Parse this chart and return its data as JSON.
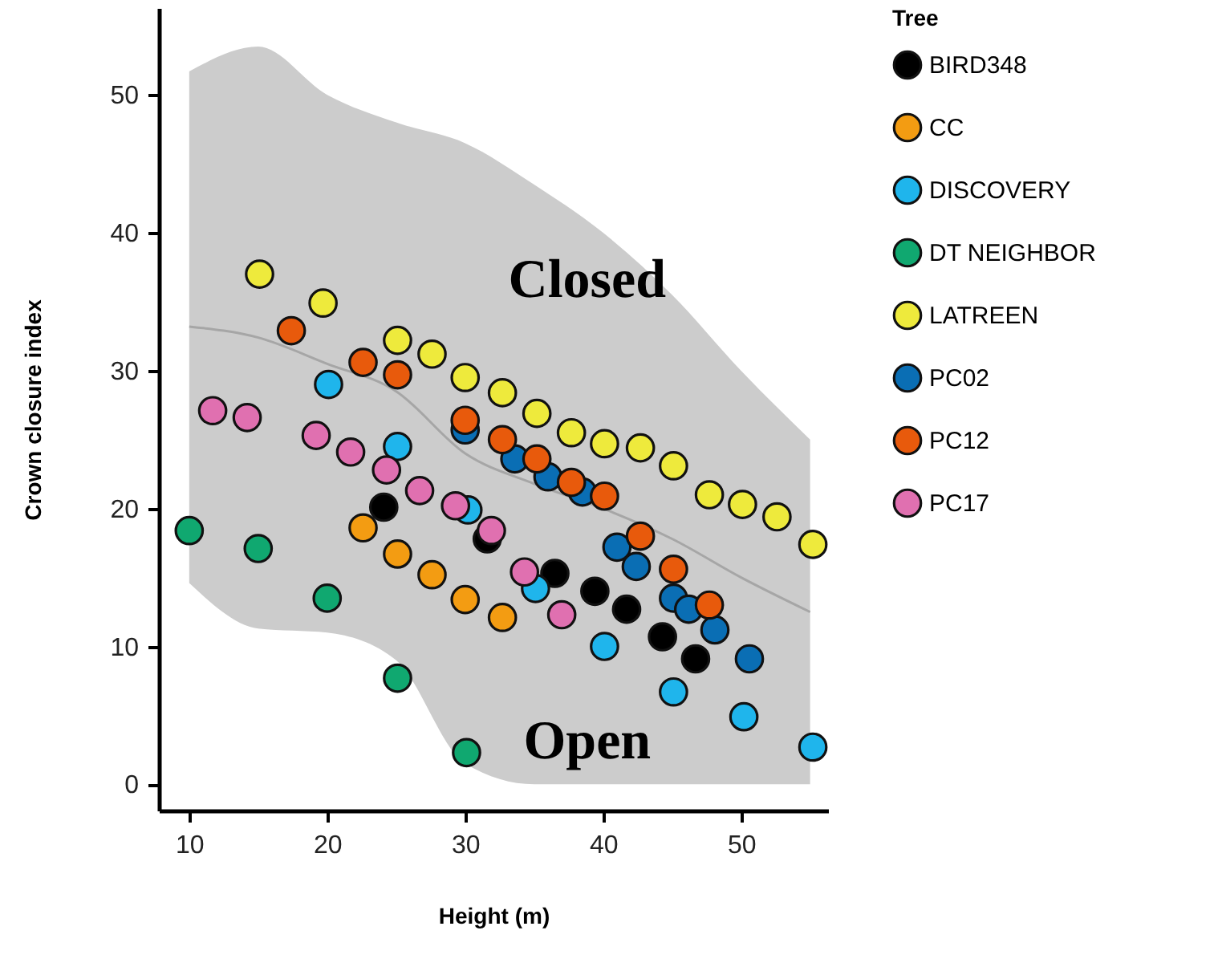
{
  "chart_data": {
    "type": "scatter",
    "xlabel": "Height (m)",
    "ylabel": "Crown closure index",
    "legend_title": "Tree",
    "legend": "right",
    "marker": "circle",
    "grid": false,
    "xlim": [
      7.8,
      56.3
    ],
    "xticks": [
      10,
      20,
      30,
      40,
      50
    ],
    "ylim": [
      -1.9,
      56.3
    ],
    "yticks": [
      0,
      10,
      20,
      30,
      40,
      50
    ],
    "annotations": [
      "Closed",
      "Open"
    ],
    "series": [
      {
        "type": "line",
        "marker": "none",
        "color": "#a6a6a6",
        "x": [
          10,
          15,
          20,
          25,
          30,
          35,
          40,
          45,
          50,
          55
        ],
        "values": [
          33.2,
          32.4,
          30.5,
          28.5,
          24,
          21.8,
          20,
          17.8,
          15,
          12.5
        ],
        "upper": [
          51.7,
          53.5,
          50,
          48,
          46.5,
          43.5,
          40,
          35.5,
          30,
          25
        ],
        "lower": [
          14.6,
          11.3,
          11,
          9,
          1.5,
          0,
          0,
          0,
          0,
          0
        ]
      },
      {
        "name": "BIRD348",
        "color": "#000000",
        "x": [
          24.1,
          31.6,
          36.5,
          39.4,
          41.7,
          44.3,
          46.7
        ],
        "values": [
          20.1,
          17.8,
          15.3,
          14.0,
          12.7,
          10.7,
          9.1
        ]
      },
      {
        "name": "CC",
        "color": "#f39c12",
        "x": [
          22.6,
          25.1,
          27.6,
          30,
          32.7
        ],
        "values": [
          18.6,
          16.7,
          15.2,
          13.4,
          12.1
        ]
      },
      {
        "name": "DISCOVERY",
        "color": "#1fb5ec",
        "x": [
          20.1,
          25.1,
          30.2,
          35.1,
          40.1,
          45.1,
          50.2,
          55.2
        ],
        "values": [
          29.0,
          24.5,
          19.9,
          14.2,
          10.0,
          6.7,
          4.9,
          2.7
        ]
      },
      {
        "name": "DT NEIGHBOR",
        "color": "#10a870",
        "x": [
          10,
          15,
          20,
          25.1,
          30.1
        ],
        "values": [
          18.4,
          17.1,
          13.5,
          7.7,
          2.3
        ]
      },
      {
        "name": "LATREEN",
        "color": "#eeea3c",
        "x": [
          15.1,
          19.7,
          25.1,
          27.6,
          30,
          32.7,
          35.2,
          37.7,
          40.1,
          42.7,
          45.1,
          47.7,
          50.1,
          52.6,
          55.2
        ],
        "values": [
          37.0,
          34.9,
          32.2,
          31.2,
          29.5,
          28.4,
          26.9,
          25.5,
          24.7,
          24.4,
          23.1,
          21.0,
          20.3,
          19.4,
          17.4
        ]
      },
      {
        "name": "PC02",
        "color": "#0a6eb4",
        "x": [
          30,
          33.6,
          36.0,
          38.5,
          41.0,
          42.4,
          45.1,
          46.2,
          48.1,
          50.6
        ],
        "values": [
          25.7,
          23.6,
          22.3,
          21.2,
          17.2,
          15.8,
          13.5,
          12.7,
          11.2,
          9.1
        ]
      },
      {
        "name": "PC12",
        "color": "#e85a0c",
        "x": [
          17.4,
          22.6,
          25.1,
          30,
          32.7,
          35.2,
          37.7,
          40.1,
          42.7,
          45.1,
          47.7
        ],
        "values": [
          32.9,
          30.6,
          29.7,
          26.4,
          25.0,
          23.6,
          21.9,
          20.9,
          18.0,
          15.6,
          13.0
        ]
      },
      {
        "name": "PC17",
        "color": "#e070b0",
        "x": [
          11.7,
          14.2,
          19.2,
          21.7,
          24.3,
          26.7,
          29.3,
          31.9,
          34.3,
          37.0
        ],
        "values": [
          27.1,
          26.6,
          25.3,
          24.1,
          22.8,
          21.3,
          20.2,
          18.4,
          15.4,
          12.3
        ]
      }
    ]
  }
}
